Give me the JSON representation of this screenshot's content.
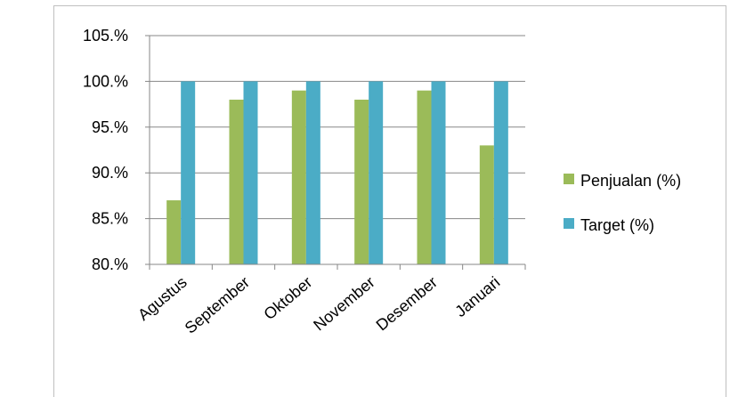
{
  "chart_data": {
    "type": "bar",
    "categories": [
      "Agustus",
      "September",
      "Oktober",
      "November",
      "Desember",
      "Januari"
    ],
    "series": [
      {
        "name": "Penjualan (%)",
        "color": "#9bbb59",
        "values": [
          87,
          98,
          99,
          98,
          99,
          93
        ]
      },
      {
        "name": "Target (%)",
        "color": "#4bacc6",
        "values": [
          100,
          100,
          100,
          100,
          100,
          100
        ]
      }
    ],
    "y_ticks": [
      "80.%",
      "85.%",
      "90.%",
      "95.%",
      "100.%",
      "105.%"
    ],
    "ylim": [
      80,
      105
    ],
    "title": "",
    "xlabel": "",
    "ylabel": "",
    "grid": "horizontal",
    "legend_position": "right"
  }
}
